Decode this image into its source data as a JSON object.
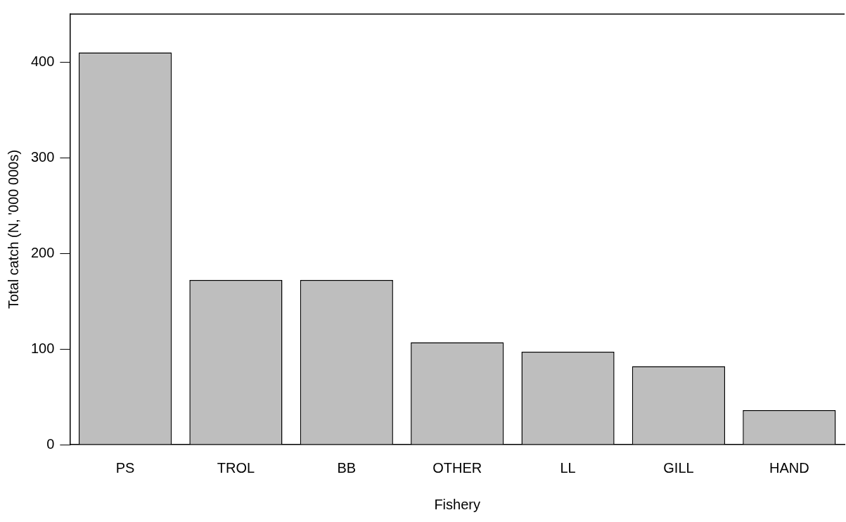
{
  "chart_data": {
    "type": "bar",
    "xlabel": "Fishery",
    "ylabel": "Total catch (N, '000 000s)",
    "categories": [
      "PS",
      "TROL",
      "BB",
      "OTHER",
      "LL",
      "GILL",
      "HAND"
    ],
    "values": [
      410,
      172,
      172,
      107,
      97,
      82,
      36
    ],
    "color": "#bebebe",
    "ylim": [
      0,
      450
    ],
    "yticks": [
      0,
      100,
      200,
      300,
      400
    ],
    "grid": false,
    "legend": false
  }
}
